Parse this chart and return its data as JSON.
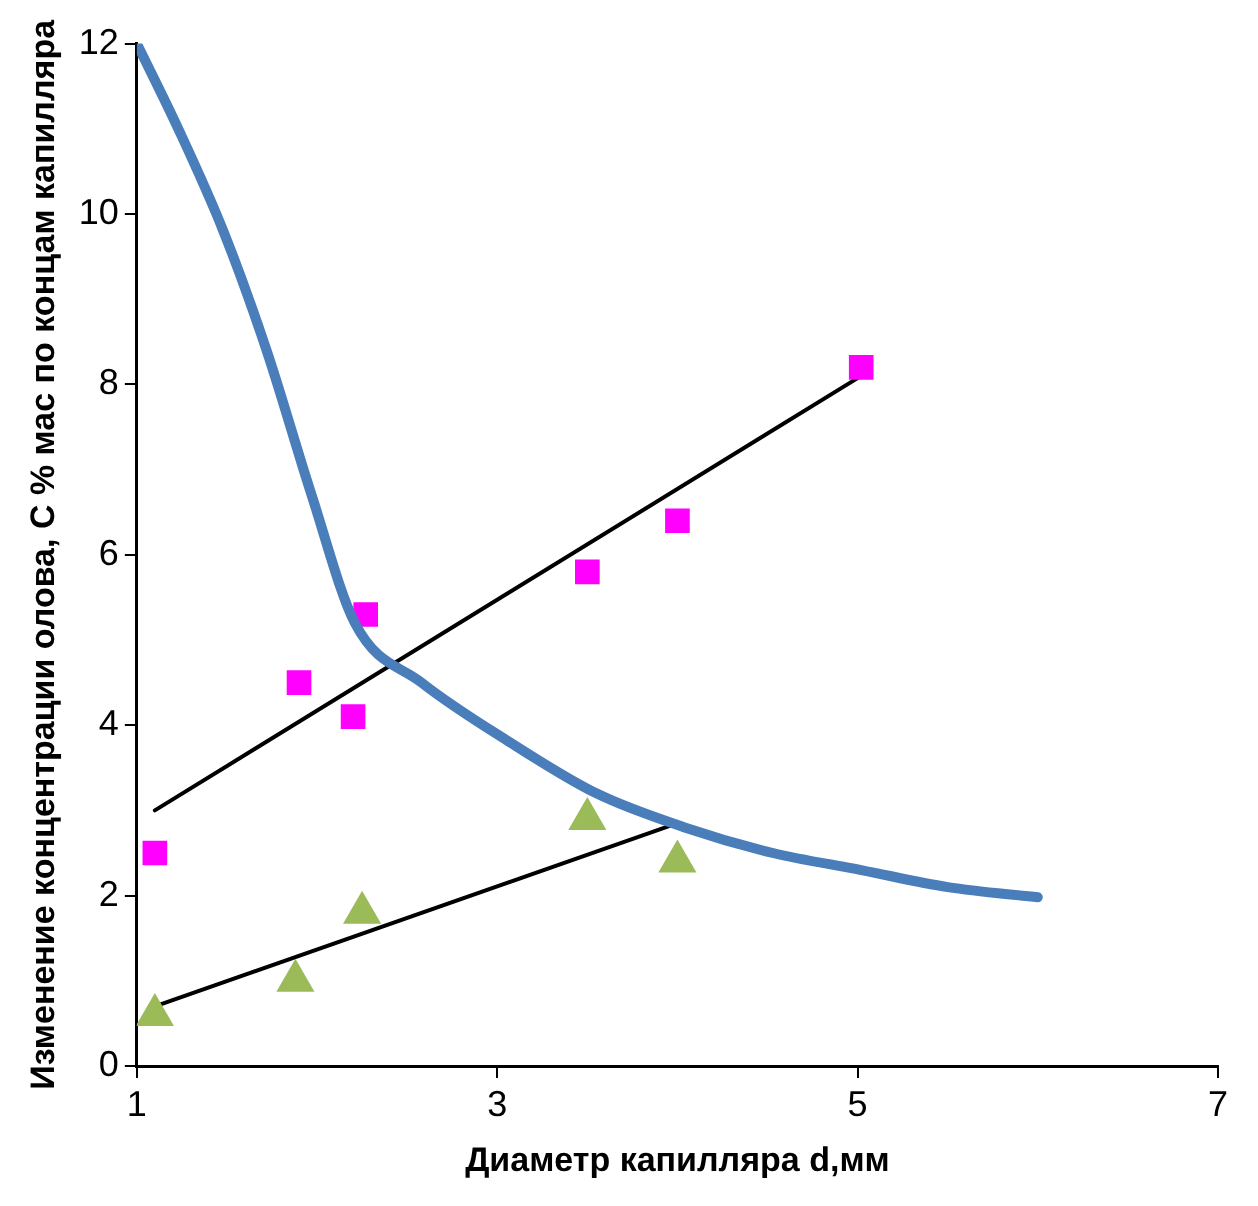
{
  "chart_data": {
    "type": "scatter",
    "xlabel": "Диаметр капилляра d,мм",
    "ylabel": "Изменение концентрации олова, С % мас по концам капилляра",
    "xlim": [
      1,
      7
    ],
    "xticks": [
      1,
      3,
      5,
      7
    ],
    "ylim": [
      0,
      12
    ],
    "yticks": [
      0,
      2,
      4,
      6,
      8,
      10,
      12
    ],
    "grid": false,
    "legend": false,
    "series": [
      {
        "type": "line",
        "color": "#4a7ebb",
        "marker": "none",
        "x": [
          1,
          1.23,
          1.48,
          1.72,
          1.97,
          2.21,
          2.58,
          3.07,
          3.55,
          4.04,
          4.53,
          5.02,
          5.5,
          6.0
        ],
        "values": [
          12,
          11.0,
          9.8,
          8.4,
          6.7,
          5.2,
          4.5,
          3.8,
          3.2,
          2.8,
          2.5,
          2.3,
          2.1,
          1.98
        ]
      },
      {
        "color": "#ff00ff",
        "marker": "square",
        "x": [
          1.1,
          1.9,
          2.2,
          2.27,
          3.5,
          4.0,
          5.02
        ],
        "values": [
          2.5,
          4.5,
          4.1,
          5.3,
          5.8,
          6.4,
          8.2
        ]
      },
      {
        "color": "#9bbb59",
        "marker": "triangle",
        "x": [
          1.1,
          1.88,
          2.25,
          3.5,
          4.0
        ],
        "values": [
          0.6,
          1.0,
          1.8,
          2.9,
          2.4
        ]
      },
      {
        "type": "line",
        "color": "#000000",
        "marker": "none",
        "x": [
          1.1,
          5.02
        ],
        "values": [
          3.0,
          8.1
        ]
      },
      {
        "type": "line",
        "color": "#000000",
        "marker": "none",
        "x": [
          1.1,
          4.0
        ],
        "values": [
          0.7,
          2.85
        ]
      }
    ]
  }
}
